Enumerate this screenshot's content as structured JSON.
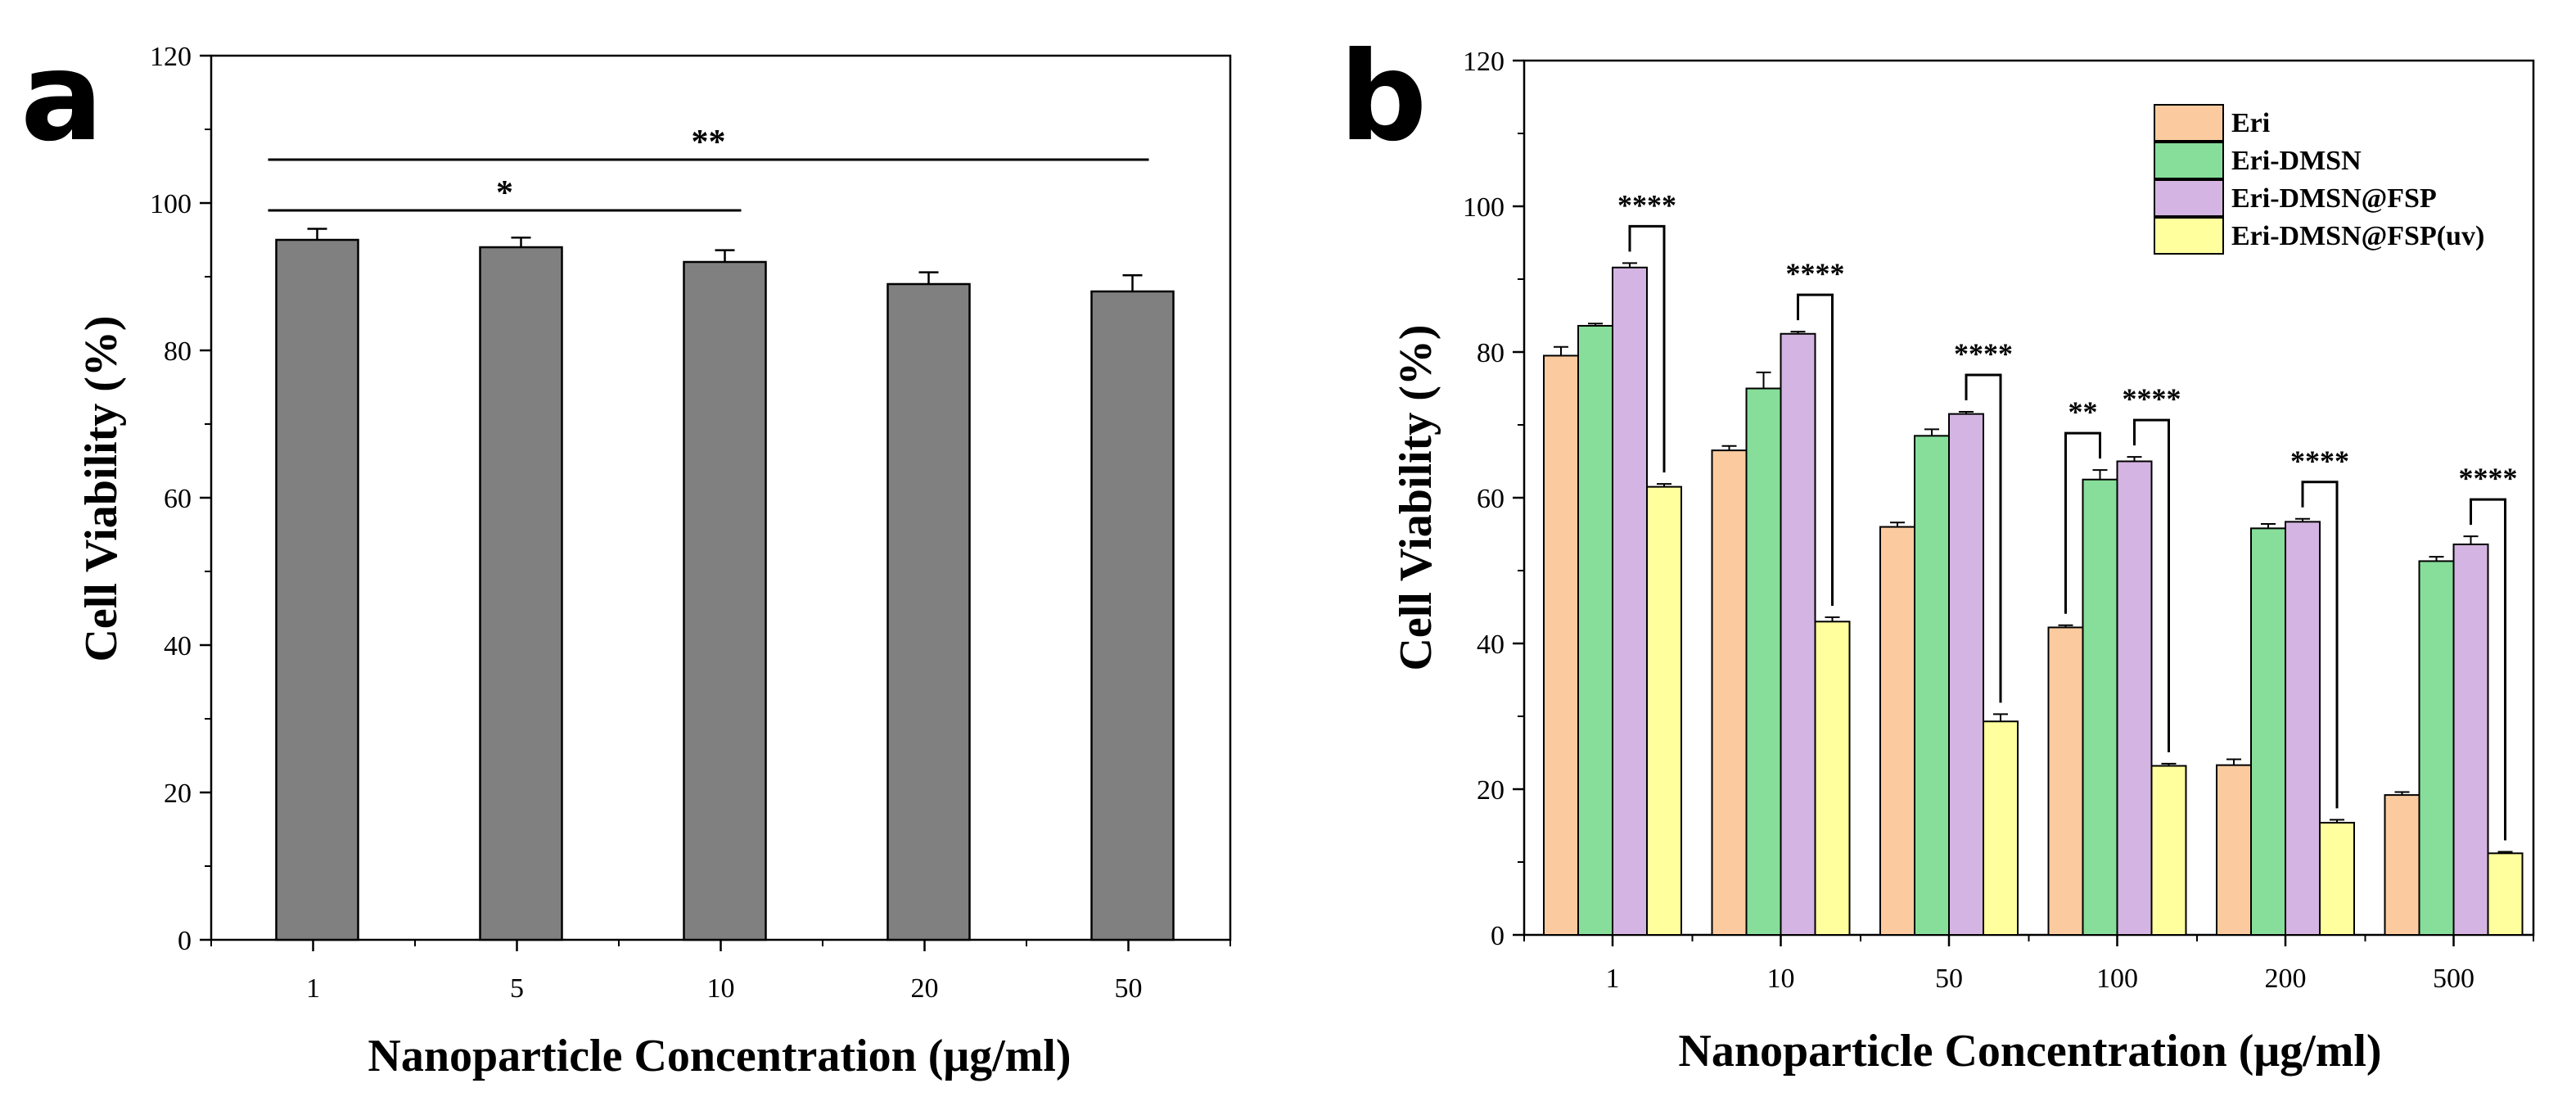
{
  "chart_data": [
    {
      "panel": "a",
      "type": "bar",
      "title": "",
      "xlabel": "Nanoparticle Concentration (μg/ml)",
      "ylabel": "Cell Viability (%)",
      "ylim": [
        0,
        120
      ],
      "yticks": [
        "0",
        "20",
        "40",
        "60",
        "80",
        "100",
        "120"
      ],
      "categories": [
        "1",
        "5",
        "10",
        "20",
        "50"
      ],
      "values": [
        95,
        94,
        92,
        89,
        88
      ],
      "errors": [
        1.5,
        1.3,
        1.6,
        1.6,
        2.2
      ],
      "color": "#808080",
      "significance": [
        {
          "from": 0,
          "to": 2,
          "label": "*"
        },
        {
          "from": 0,
          "to": 4,
          "label": "**"
        }
      ],
      "grid": false
    },
    {
      "panel": "b",
      "type": "bar",
      "title": "",
      "xlabel": "Nanoparticle Concentration (μg/ml)",
      "ylabel": "Cell Viability (%)",
      "ylim": [
        0,
        120
      ],
      "yticks": [
        "0",
        "20",
        "40",
        "60",
        "80",
        "100",
        "120"
      ],
      "categories": [
        "1",
        "10",
        "50",
        "100",
        "200",
        "500"
      ],
      "legend_position": "top-right",
      "series": [
        {
          "name": "Eri",
          "color": "#FBCB9F",
          "values": [
            79.5,
            66.5,
            56,
            42.2,
            23.3,
            19.2
          ],
          "errors": [
            1.2,
            0.6,
            0.6,
            0.3,
            0.8,
            0.4
          ]
        },
        {
          "name": "Eri-DMSN",
          "color": "#86DE9A",
          "values": [
            83.6,
            75,
            68.5,
            62.5,
            55.8,
            51.3
          ],
          "errors": [
            0.3,
            2.2,
            0.9,
            1.3,
            0.6,
            0.6
          ]
        },
        {
          "name": "Eri-DMSN@FSP",
          "color": "#D4B4E2",
          "values": [
            91.6,
            82.5,
            71.5,
            65,
            56.7,
            53.6
          ],
          "errors": [
            0.6,
            0.3,
            0.3,
            0.6,
            0.4,
            1.1
          ]
        },
        {
          "name": "Eri-DMSN@FSP(uv)",
          "color": "#FFFF9E",
          "values": [
            61.5,
            43,
            29.3,
            23.2,
            15.4,
            11.2
          ],
          "errors": [
            0.4,
            0.6,
            1,
            0.3,
            0.4,
            0.2
          ]
        }
      ],
      "significance": [
        {
          "category": 0,
          "from_series": 2,
          "to_series": 3,
          "label": "****"
        },
        {
          "category": 1,
          "from_series": 2,
          "to_series": 3,
          "label": "****"
        },
        {
          "category": 2,
          "from_series": 2,
          "to_series": 3,
          "label": "****"
        },
        {
          "category": 3,
          "from_series": 0,
          "to_series": 1,
          "label": "**"
        },
        {
          "category": 3,
          "from_series": 2,
          "to_series": 3,
          "label": "****"
        },
        {
          "category": 4,
          "from_series": 2,
          "to_series": 3,
          "label": "****"
        },
        {
          "category": 5,
          "from_series": 2,
          "to_series": 3,
          "label": "****"
        }
      ],
      "grid": false
    }
  ],
  "panels": {
    "a": {
      "letter": "a"
    },
    "b": {
      "letter": "b"
    }
  }
}
